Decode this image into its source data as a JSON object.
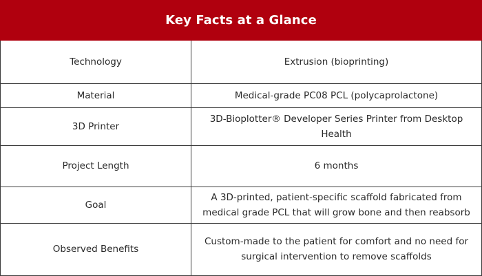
{
  "header": {
    "title": "Key Facts at a Glance"
  },
  "colors": {
    "header_bg": "#b0000e",
    "header_text": "#ffffff",
    "border": "#3a3a3a"
  },
  "rows": [
    {
      "label": "Technology",
      "value": "Extrusion (bioprinting)"
    },
    {
      "label": "Material",
      "value": "Medical-grade PC08 PCL (polycaprolactone)"
    },
    {
      "label": "3D Printer",
      "value": "3D-Bioplotter® Developer Series Printer from Desktop Health"
    },
    {
      "label": "Project Length",
      "value": "6 months"
    },
    {
      "label": "Goal",
      "value": "A 3D-printed, patient-specific scaffold fabricated from medical grade PCL that will grow bone and then reabsorb"
    },
    {
      "label": "Observed Benefits",
      "value": "Custom-made to the patient for comfort and no need for surgical intervention to remove scaffolds"
    }
  ]
}
